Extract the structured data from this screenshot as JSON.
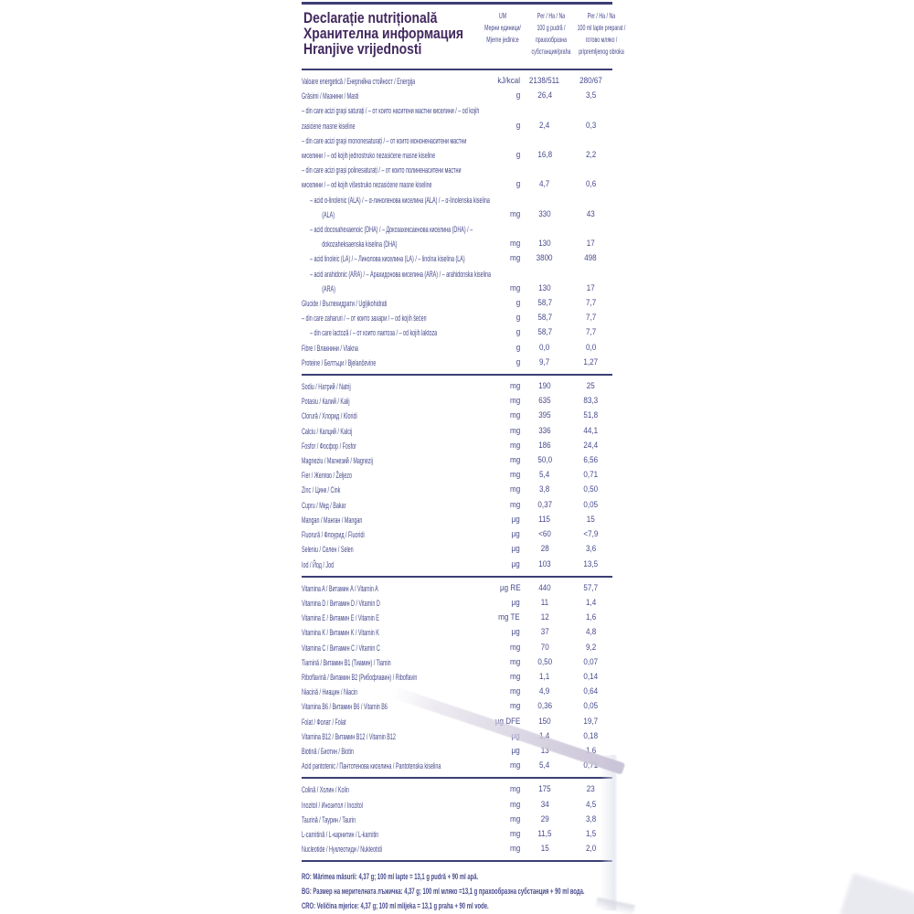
{
  "colors": {
    "title_text": "#42295f",
    "body_text": "#474a8c",
    "rule": "#3c3f73",
    "glare_stripe": "#d6d0e0",
    "background": "#ffffff"
  },
  "title": {
    "lines": [
      "Declarație nutrițională",
      "Хранителна информация",
      "Hranjive vrijednosti"
    ]
  },
  "columns": {
    "um": [
      "UM",
      "Мерни единици/",
      "Mjerne jedinice"
    ],
    "per100g": [
      "Per / На / Na",
      "100 g pudră /",
      "прахообразна",
      "субстанция/praha"
    ],
    "per100ml": [
      "Per / На / Na",
      "100 ml lapte preparat /",
      "готово мляко /",
      "pripremljenog obroka"
    ]
  },
  "table": {
    "sections": [
      {
        "rows": [
          {
            "name": "Valoare energetică / Енергийна стойност / Energija",
            "unit": "kJ/kcal",
            "per_100g": "2138/511",
            "per_100ml": "280/67",
            "indent": 0
          },
          {
            "name": "Grăsimi / Мазнини / Masti",
            "unit": "g",
            "per_100g": "26,4",
            "per_100ml": "3,5",
            "indent": 0
          },
          {
            "name": "– din care acizi grași saturați / – от които наситени мастни киселини / – od kojih zasićene masne kiseline",
            "unit": "g",
            "per_100g": "2,4",
            "per_100ml": "0,3",
            "indent": 0
          },
          {
            "name": "– din care acizi grași mononesaturați / – от които мононенаситени мастни киселини / – od kojih jednostruko nezasićene masne kiseline",
            "unit": "g",
            "per_100g": "16,8",
            "per_100ml": "2,2",
            "indent": 0
          },
          {
            "name": "– din care acizi grași polinesaturați / – от които полиненаситени мастни киселини / – od kojih višestruko nezasićene masne kiseline",
            "unit": "g",
            "per_100g": "4,7",
            "per_100ml": "0,6",
            "indent": 0
          },
          {
            "name": "– acid α-linolenic (ALA) / – α-линоленова киселина (ALA) / – α-linolenska kiselina (ALA)",
            "unit": "mg",
            "per_100g": "330",
            "per_100ml": "43",
            "indent": 1
          },
          {
            "name": "– acid docosahexaenoic (DHA) / – Докозахексаенова киселина (DHA) / – dokozaheksaenska kiselina (DHA)",
            "unit": "mg",
            "per_100g": "130",
            "per_100ml": "17",
            "indent": 1
          },
          {
            "name": "– acid linoleic (LA) / – Линолова киселина (LA) / – linolna kiselina (LA)",
            "unit": "mg",
            "per_100g": "3800",
            "per_100ml": "498",
            "indent": 1
          },
          {
            "name": "– acid arahidonic (ARA) / – Арахидонова киселина (ARA) / – arahidonska kiselina (ARA)",
            "unit": "mg",
            "per_100g": "130",
            "per_100ml": "17",
            "indent": 1
          },
          {
            "name": "Glucide / Въглехидрати / Ugljikohidrati",
            "unit": "g",
            "per_100g": "58,7",
            "per_100ml": "7,7",
            "indent": 0
          },
          {
            "name": "– din care zaharuri / – от които захари / – od kojih šećeri",
            "unit": "g",
            "per_100g": "58,7",
            "per_100ml": "7,7",
            "indent": 0
          },
          {
            "name": "– din care lactoză / – от които лактоза / – od kojih laktoza",
            "unit": "g",
            "per_100g": "58,7",
            "per_100ml": "7,7",
            "indent": 1
          },
          {
            "name": "Fibre / Влакнини / Vlakna",
            "unit": "g",
            "per_100g": "0,0",
            "per_100ml": "0,0",
            "indent": 0
          },
          {
            "name": "Proteine / Белтъци / Bjelančevine",
            "unit": "g",
            "per_100g": "9,7",
            "per_100ml": "1,27",
            "indent": 0
          }
        ]
      },
      {
        "rows": [
          {
            "name": "Sodiu / Натрий / Natrij",
            "unit": "mg",
            "per_100g": "190",
            "per_100ml": "25",
            "indent": 0
          },
          {
            "name": "Potasiu / Калий / Kalij",
            "unit": "mg",
            "per_100g": "635",
            "per_100ml": "83,3",
            "indent": 0
          },
          {
            "name": "Clorură / Хлорид / Kloridi",
            "unit": "mg",
            "per_100g": "395",
            "per_100ml": "51,8",
            "indent": 0
          },
          {
            "name": "Calciu / Калций / Kalcij",
            "unit": "mg",
            "per_100g": "336",
            "per_100ml": "44,1",
            "indent": 0
          },
          {
            "name": "Fosfor / Фосфор / Fosfor",
            "unit": "mg",
            "per_100g": "186",
            "per_100ml": "24,4",
            "indent": 0
          },
          {
            "name": "Magneziu / Магнезий / Magnezij",
            "unit": "mg",
            "per_100g": "50,0",
            "per_100ml": "6,56",
            "indent": 0
          },
          {
            "name": "Fier / Желязо / Željezo",
            "unit": "mg",
            "per_100g": "5,4",
            "per_100ml": "0,71",
            "indent": 0
          },
          {
            "name": "Zinc / Цинк / Cink",
            "unit": "mg",
            "per_100g": "3,8",
            "per_100ml": "0,50",
            "indent": 0
          },
          {
            "name": "Cupru / Мед / Bakar",
            "unit": "mg",
            "per_100g": "0,37",
            "per_100ml": "0,05",
            "indent": 0
          },
          {
            "name": "Mangan / Манган / Mangan",
            "unit": "µg",
            "per_100g": "115",
            "per_100ml": "15",
            "indent": 0
          },
          {
            "name": "Fluorură / Флоурид / Fluoridi",
            "unit": "µg",
            "per_100g": "<60",
            "per_100ml": "<7,9",
            "indent": 0
          },
          {
            "name": "Seleniu / Селен / Selen",
            "unit": "µg",
            "per_100g": "28",
            "per_100ml": "3,6",
            "indent": 0
          },
          {
            "name": "Iod / Йод / Jod",
            "unit": "µg",
            "per_100g": "103",
            "per_100ml": "13,5",
            "indent": 0
          }
        ]
      },
      {
        "rows": [
          {
            "name": "Vitamina A / Витамин A / Vitamin A",
            "unit": "µg RE",
            "per_100g": "440",
            "per_100ml": "57,7",
            "indent": 0
          },
          {
            "name": "Vitamina D / Витамин D / Vitamin D",
            "unit": "µg",
            "per_100g": "11",
            "per_100ml": "1,4",
            "indent": 0
          },
          {
            "name": "Vitamina E / Витамин E / Vitamin E",
            "unit": "mg TE",
            "per_100g": "12",
            "per_100ml": "1,6",
            "indent": 0
          },
          {
            "name": "Vitamina K / Витамин K / Vitamin K",
            "unit": "µg",
            "per_100g": "37",
            "per_100ml": "4,8",
            "indent": 0
          },
          {
            "name": "Vitamina C / Витамин C / Vitamin C",
            "unit": "mg",
            "per_100g": "70",
            "per_100ml": "9,2",
            "indent": 0
          },
          {
            "name": "Tiamină / Витамин B1 (Тиамин) / Tiamin",
            "unit": "mg",
            "per_100g": "0,50",
            "per_100ml": "0,07",
            "indent": 0
          },
          {
            "name": "Riboflavină / Витамин B2 (Рибофлавин) / Riboflavin",
            "unit": "mg",
            "per_100g": "1,1",
            "per_100ml": "0,14",
            "indent": 0
          },
          {
            "name": "Niacină / Ниацин / Niacin",
            "unit": "mg",
            "per_100g": "4,9",
            "per_100ml": "0,64",
            "indent": 0
          },
          {
            "name": "Vitamina B6 / Витамин B6 / Vitamin B6",
            "unit": "mg",
            "per_100g": "0,36",
            "per_100ml": "0,05",
            "indent": 0
          },
          {
            "name": "Folat / Фолат / Folat",
            "unit": "µg DFE",
            "per_100g": "150",
            "per_100ml": "19,7",
            "indent": 0
          },
          {
            "name": "Vitamina B12 / Витамин B12 / Vitamin B12",
            "unit": "µg",
            "per_100g": "1,4",
            "per_100ml": "0,18",
            "indent": 0
          },
          {
            "name": "Biotină / Биотин / Biotin",
            "unit": "µg",
            "per_100g": "13",
            "per_100ml": "1,6",
            "indent": 0
          },
          {
            "name": "Acid pantotenic / Пантотенова киселина / Pantotenska kiselina",
            "unit": "mg",
            "per_100g": "5,4",
            "per_100ml": "0,71",
            "indent": 0
          }
        ]
      },
      {
        "rows": [
          {
            "name": "Colină / Холин / Kolin",
            "unit": "mg",
            "per_100g": "175",
            "per_100ml": "23",
            "indent": 0
          },
          {
            "name": "Inozitol / Инозитол / Inozitol",
            "unit": "mg",
            "per_100g": "34",
            "per_100ml": "4,5",
            "indent": 0
          },
          {
            "name": "Taurină / Таурин / Taurin",
            "unit": "mg",
            "per_100g": "29",
            "per_100ml": "3,8",
            "indent": 0
          },
          {
            "name": "L-carnitină / L-карнитин / L-karnitin",
            "unit": "mg",
            "per_100g": "11,5",
            "per_100ml": "1,5",
            "indent": 0
          },
          {
            "name": "Nucleotide / Нуклеотиди / Nukleotidi",
            "unit": "mg",
            "per_100g": "15",
            "per_100ml": "2,0",
            "indent": 0
          }
        ]
      }
    ]
  },
  "footer": {
    "lines": [
      "RO: Mărimea măsurii: 4,37 g; 100 ml lapte = 13,1 g pudră + 90 ml apă.",
      "BG: Размер на мерителната лъжичка: 4,37 g; 100 ml мляко =13,1 g прахообразна субстанция + 90 ml вода.",
      "CRO: Veličina mjerice: 4,37 g; 100 ml mlijeka = 13,1 g praha + 90 ml vode."
    ]
  }
}
